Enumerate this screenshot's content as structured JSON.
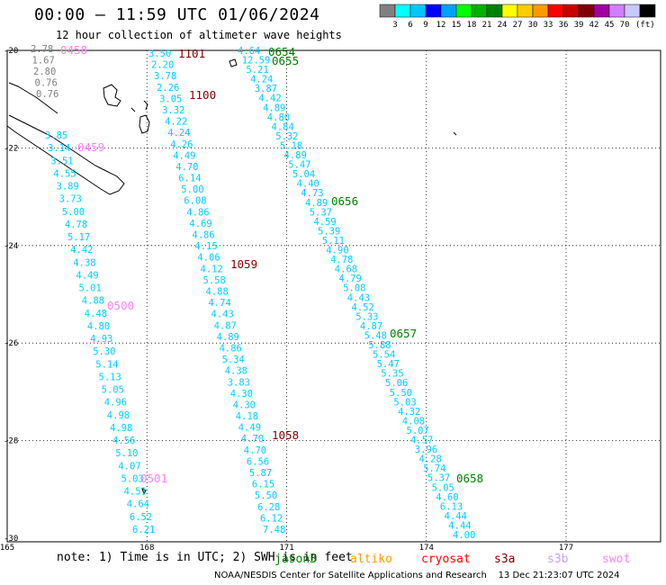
{
  "title": "00:00 – 11:59 UTC 01/06/2024",
  "subtitle": "12 hour collection of altimeter wave heights",
  "colorbar": {
    "colors": [
      "#808080",
      "#00ffff",
      "#00c8ff",
      "#0000ff",
      "#00a0ff",
      "#00ff00",
      "#00b000",
      "#008000",
      "#ffff00",
      "#ffcc00",
      "#ff9900",
      "#ff0000",
      "#c80000",
      "#800000",
      "#a000a0",
      "#d080ff",
      "#c8c8ff",
      "#000000"
    ],
    "ticks": [
      "3",
      "6",
      "9",
      "12",
      "15",
      "18",
      "21",
      "24",
      "27",
      "30",
      "33",
      "36",
      "39",
      "42",
      "45",
      "70"
    ],
    "unit": "(ft)"
  },
  "axes": {
    "lat_ticks": [
      "-20",
      "-22",
      "-24",
      "-26",
      "-28",
      "-30"
    ],
    "lon_ticks": [
      "165",
      "168",
      "171",
      "174",
      "177"
    ]
  },
  "note": "note: 1) Time is in UTC; 2) SWH is in feet",
  "legend": [
    {
      "label": "jason3",
      "color": "#008000"
    },
    {
      "label": "altiko",
      "color": "#ff9900"
    },
    {
      "label": "cryosat",
      "color": "#ff0000"
    },
    {
      "label": "s3a",
      "color": "#800000"
    },
    {
      "label": "s3b",
      "color": "#c8a0ff"
    },
    {
      "label": "swot",
      "color": "#ff80ff"
    }
  ],
  "credit": "NOAA/NESDIS Center for Satellite Applications and Research    13 Dec 21:23:07 UTC 2024",
  "passes": [
    {
      "name": "pass-a",
      "values": [
        "2.78",
        "1.67",
        "2.80",
        "0.76",
        "0.76"
      ],
      "color": "#808080"
    },
    {
      "name": "pass-b",
      "values": [
        "3.85",
        "3.14",
        "3.51",
        "4.55",
        "3.89",
        "3.73",
        "5.00",
        "4.78",
        "5.17",
        "4.42",
        "4.38",
        "4.49",
        "5.01",
        "4.88",
        "4.48",
        "4.80",
        "4.93",
        "5.30",
        "5.14",
        "5.13",
        "5.05",
        "4.96",
        "4.98",
        "4.98",
        "4.56",
        "5.10",
        "4.07",
        "5.03",
        "4.51",
        "4.64",
        "6.52",
        "6.21"
      ],
      "color": "#00ccff"
    },
    {
      "name": "pass-c",
      "values": [
        "3.50",
        "2.20",
        "3.78",
        "2.26",
        "3.05",
        "3.32",
        "4.22",
        "4.24",
        "4.26",
        "4.49",
        "4.70",
        "6.14",
        "5.00",
        "6.08",
        "4.86",
        "4.69",
        "4.86",
        "4.15",
        "4.06",
        "4.12",
        "5.58",
        "4.88",
        "4.74",
        "4.43",
        "4.87",
        "4.89",
        "4.86",
        "5.34",
        "4.38",
        "3.83",
        "4.30",
        "4.30",
        "4.18",
        "4.49",
        "4.70",
        "4.70",
        "6.56",
        "5.87",
        "6.15",
        "5.50",
        "6.28",
        "6.12",
        "7.48"
      ],
      "color": "#00ccff"
    },
    {
      "name": "pass-d",
      "values": [
        "4.64",
        "12.59",
        "5.21",
        "4.24",
        "3.87",
        "4.42",
        "4.89",
        "4.80",
        "4.84",
        "5.32",
        "5.18",
        "4.89",
        "5.47",
        "5.04",
        "4.40",
        "4.73",
        "4.89",
        "5.37",
        "4.59",
        "5.39",
        "5.11",
        "4.90",
        "4.78",
        "4.68",
        "4.79",
        "5.08",
        "4.43",
        "4.52",
        "5.33",
        "4.87",
        "5.48",
        "5.88",
        "5.54",
        "5.47",
        "5.35",
        "5.06",
        "5.50",
        "5.03",
        "4.32",
        "4.08",
        "5.07",
        "4.57",
        "3.96",
        "4.28",
        "5.74",
        "5.37",
        "5.05",
        "4.60",
        "6.13",
        "4.44",
        "4.44",
        "4.00"
      ],
      "color": "#00ccff"
    }
  ],
  "time_labels": [
    {
      "text": "0458",
      "color": "#ff80ff"
    },
    {
      "text": "1101",
      "color": "#800000"
    },
    {
      "text": "0654",
      "color": "#008000"
    },
    {
      "text": "0655",
      "color": "#008000"
    },
    {
      "text": "1100",
      "color": "#800000"
    },
    {
      "text": "0459",
      "color": "#ff80ff"
    },
    {
      "text": "0656",
      "color": "#008000"
    },
    {
      "text": "1059",
      "color": "#800000"
    },
    {
      "text": "0500",
      "color": "#ff80ff"
    },
    {
      "text": "0657",
      "color": "#008000"
    },
    {
      "text": "1058",
      "color": "#800000"
    },
    {
      "text": "0501",
      "color": "#ff80ff"
    },
    {
      "text": "0658",
      "color": "#008000"
    }
  ]
}
